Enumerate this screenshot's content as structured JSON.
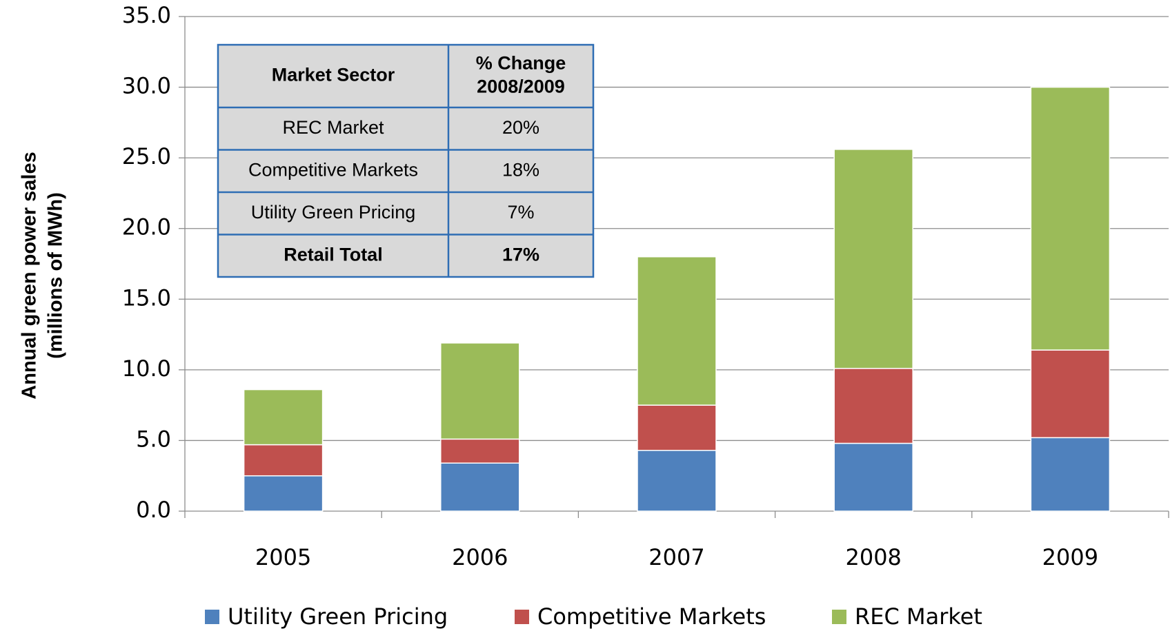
{
  "chart_data": {
    "type": "stacked_bar",
    "y_label": [
      "Annual green power sales",
      "(millions of MWh)"
    ],
    "categories": [
      "2005",
      "2006",
      "2007",
      "2008",
      "2009"
    ],
    "series": [
      {
        "name": "Utility Green Pricing",
        "color": "#4f81bd",
        "values": [
          2.5,
          3.4,
          4.3,
          4.8,
          5.2
        ]
      },
      {
        "name": "Competitive Markets",
        "color": "#c0504d",
        "values": [
          2.2,
          1.7,
          3.2,
          5.3,
          6.2
        ]
      },
      {
        "name": "REC Market",
        "color": "#9bbb59",
        "values": [
          3.9,
          6.8,
          10.5,
          15.5,
          18.6
        ]
      }
    ],
    "ylim": [
      0,
      35
    ],
    "yticks": [
      {
        "value": 0,
        "label": "0.0"
      },
      {
        "value": 5,
        "label": "5.0"
      },
      {
        "value": 10,
        "label": "10.0"
      },
      {
        "value": 15,
        "label": "15.0"
      },
      {
        "value": 20,
        "label": "20.0"
      },
      {
        "value": 25,
        "label": "25.0"
      },
      {
        "value": 30,
        "label": "30.0"
      },
      {
        "value": 35,
        "label": "35.0"
      }
    ],
    "grid": true,
    "legend": "bottom",
    "table": {
      "header": [
        "Market Sector",
        [
          "% Change",
          "2008/2009"
        ]
      ],
      "rows": [
        [
          "REC Market",
          "20%"
        ],
        [
          "Competitive Markets",
          "18%"
        ],
        [
          "Utility Green Pricing",
          "7%"
        ],
        [
          "Retail Total",
          "17%"
        ]
      ]
    }
  }
}
